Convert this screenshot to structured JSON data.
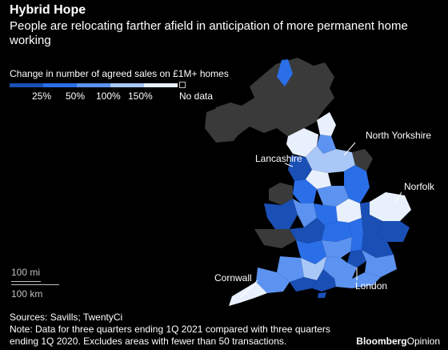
{
  "title": "Hybrid Hope",
  "subtitle": "People are relocating farther afield in anticipation of more permanent home working",
  "legend": {
    "title": "Change in number of agreed sales on £1M+ homes",
    "bins": [
      {
        "label": "25%",
        "color": "#1a4fb5"
      },
      {
        "label": "50%",
        "color": "#2a6ee8"
      },
      {
        "label": "100%",
        "color": "#5c93f0"
      },
      {
        "label": "150%",
        "color": "#a9c8f7"
      },
      {
        "label": "",
        "color": "#e8f0fd"
      }
    ],
    "nodata_label": "No data",
    "nodata_color": "#3a3a3a"
  },
  "scale": {
    "miles_label": "100 mi",
    "km_label": "100 km"
  },
  "callouts": {
    "north_yorkshire": "North Yorkshire",
    "lancashire": "Lancashire",
    "norfolk": "Norfolk",
    "cornwall": "Cornwall",
    "london": "London"
  },
  "footer": {
    "sources": "Sources: Savills; TwentyCi",
    "note": "Note: Data for three quarters ending 1Q 2021 compared with three quarters ending 1Q 2020. Excludes areas with fewer than 50 transactions."
  },
  "brand": {
    "part1": "Bloomberg",
    "part2": "Opinion"
  }
}
